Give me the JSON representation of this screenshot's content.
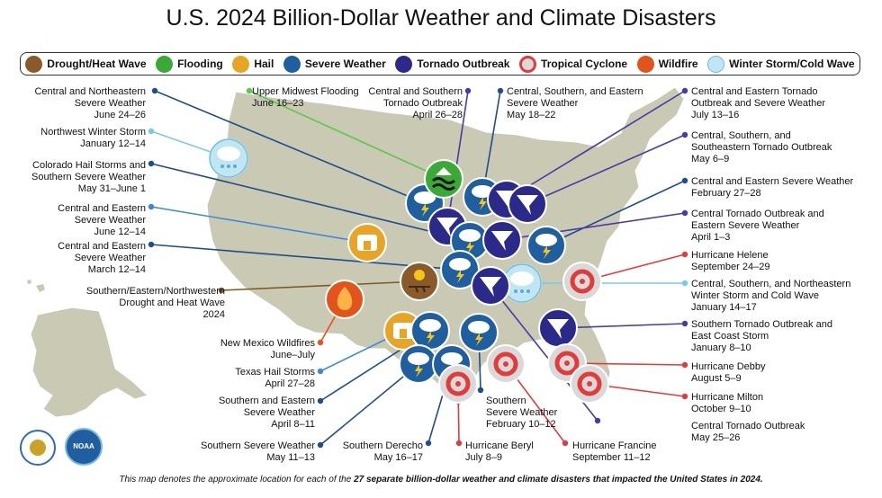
{
  "title": "U.S. 2024 Billion-Dollar Weather and Climate Disasters",
  "legend": [
    {
      "label": "Drought/Heat Wave",
      "icon": "drought-icon",
      "color": "#8b5a2b"
    },
    {
      "label": "Flooding",
      "icon": "flooding-icon",
      "color": "#3aa935"
    },
    {
      "label": "Hail",
      "icon": "hail-icon",
      "color": "#e8a424"
    },
    {
      "label": "Severe Weather",
      "icon": "severe-weather-icon",
      "color": "#1f5fa0"
    },
    {
      "label": "Tornado Outbreak",
      "icon": "tornado-icon",
      "color": "#2b2a8a"
    },
    {
      "label": "Tropical Cyclone",
      "icon": "tropical-cyclone-icon",
      "color": "#d9d9d9"
    },
    {
      "label": "Wildfire",
      "icon": "wildfire-icon",
      "color": "#e2541b"
    },
    {
      "label": "Winter Storm/Cold Wave",
      "icon": "winter-storm-icon",
      "color": "#bfe6f2"
    }
  ],
  "events": [
    {
      "name": "Central and Northeastern\nSevere Weather",
      "date": "June 24–26",
      "type": "severe"
    },
    {
      "name": "Upper Midwest Flooding",
      "date": "June 16–23",
      "type": "flood"
    },
    {
      "name": "Central and Southern\nTornado Outbreak",
      "date": "April 26–28",
      "type": "tornado"
    },
    {
      "name": "Central, Southern, and Eastern\nSevere Weather",
      "date": "May 18–22",
      "type": "severe"
    },
    {
      "name": "Central and Eastern Tornado\nOutbreak and Severe Weather",
      "date": "July 13–16",
      "type": "tornado"
    },
    {
      "name": "Northwest Winter Storm",
      "date": "January 12–14",
      "type": "winter"
    },
    {
      "name": "Central, Southern, and\nSoutheastern Tornado Outbreak",
      "date": "May 6–9",
      "type": "tornado"
    },
    {
      "name": "Colorado Hail Storms and\nSouthern Severe Weather",
      "date": "May 31–June 1",
      "type": "severe"
    },
    {
      "name": "Central and Eastern Severe Weather",
      "date": "February 27–28",
      "type": "severe"
    },
    {
      "name": "Central and Eastern\nSevere Weather",
      "date": "June 12–14",
      "type": "hail"
    },
    {
      "name": "Central Tornado Outbreak and\nEastern Severe Weather",
      "date": "April 1–3",
      "type": "tornado"
    },
    {
      "name": "Central and Eastern\nSevere Weather",
      "date": "March 12–14",
      "type": "severe"
    },
    {
      "name": "Hurricane Helene",
      "date": "September 24–29",
      "type": "cyclone"
    },
    {
      "name": "Southern/Eastern/Northwestern\nDrought and Heat Wave",
      "date": "2024",
      "type": "drought"
    },
    {
      "name": "Central, Southern, and Northeastern\nWinter Storm and Cold Wave",
      "date": "January 14–17",
      "type": "winter"
    },
    {
      "name": "Southern Tornado Outbreak and\nEast Coast Storm",
      "date": "January 8–10",
      "type": "tornado"
    },
    {
      "name": "New Mexico Wildfires",
      "date": "June–July",
      "type": "wildfire"
    },
    {
      "name": "Hurricane Debby",
      "date": "August 5–9",
      "type": "cyclone"
    },
    {
      "name": "Texas Hail Storms",
      "date": "April 27–28",
      "type": "hail"
    },
    {
      "name": "Hurricane Milton",
      "date": "October 9–10",
      "type": "cyclone"
    },
    {
      "name": "Southern and Eastern\nSevere Weather",
      "date": "April 8–11",
      "type": "severe"
    },
    {
      "name": "Southern\nSevere Weather",
      "date": "February 10–12",
      "type": "severe"
    },
    {
      "name": "Central Tornado Outbreak",
      "date": "May 25–26",
      "type": "tornado"
    },
    {
      "name": "Southern Severe Weather",
      "date": "May 11–13",
      "type": "severe"
    },
    {
      "name": "Southern Derecho",
      "date": "May 16–17",
      "type": "severe"
    },
    {
      "name": "Hurricane Beryl",
      "date": "July 8–9",
      "type": "cyclone"
    },
    {
      "name": "Hurricane Francine",
      "date": "September 11–12",
      "type": "cyclone"
    }
  ],
  "note_pre": "This map denotes the approximate location for each of the ",
  "note_bold": "27 separate billion-dollar weather and climate disasters that impacted the United States in 2024.",
  "seals": [
    {
      "name": "doc-seal",
      "color": "#2e6db4"
    },
    {
      "name": "noaa-seal",
      "color": "#1f5fa0",
      "text": "NOAA"
    }
  ]
}
